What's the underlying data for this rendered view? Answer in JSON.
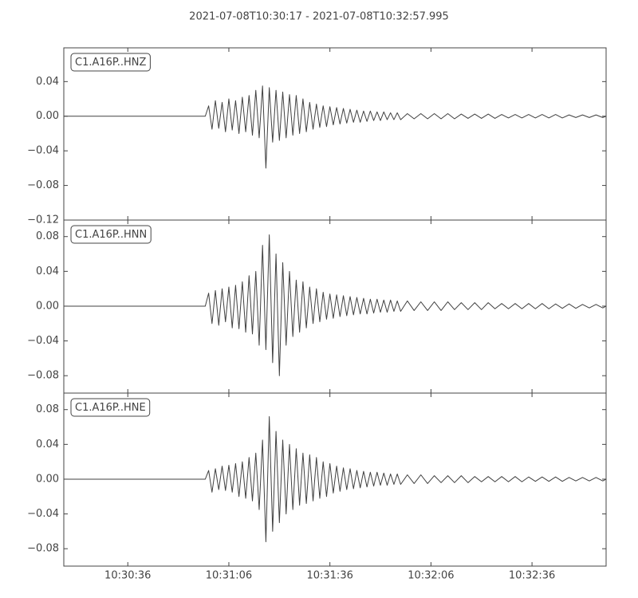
{
  "title": "2021-07-08T10:30:17  -  2021-07-08T10:32:57.995",
  "chart_data": [
    {
      "type": "line",
      "x": [
        0,
        42,
        43,
        44,
        45,
        46,
        47,
        48,
        49,
        50,
        51,
        52,
        53,
        54,
        55,
        56,
        57,
        58,
        59,
        60,
        61,
        62,
        63,
        64,
        65,
        66,
        67,
        68,
        69,
        70,
        71,
        72,
        73,
        74,
        75,
        76,
        77,
        78,
        79,
        80,
        81,
        82,
        83,
        84,
        85,
        86,
        87,
        88,
        89,
        90,
        91,
        92,
        93,
        94,
        95,
        96,
        97,
        98,
        99,
        100,
        102,
        104,
        106,
        108,
        110,
        112,
        114,
        116,
        118,
        120,
        122,
        124,
        126,
        128,
        130,
        132,
        134,
        136,
        138,
        140,
        142,
        144,
        146,
        148,
        150,
        152,
        154,
        156,
        158,
        160,
        160.995
      ],
      "series": [
        {
          "name": "C1.A16P..HNZ",
          "color": "#404040",
          "values": [
            0,
            0,
            0.012,
            -0.015,
            0.018,
            -0.014,
            0.016,
            -0.018,
            0.02,
            -0.016,
            0.018,
            -0.02,
            0.022,
            -0.018,
            0.024,
            -0.022,
            0.03,
            -0.025,
            0.035,
            -0.06,
            0.033,
            -0.03,
            0.03,
            -0.028,
            0.028,
            -0.025,
            0.025,
            -0.022,
            0.024,
            -0.02,
            0.02,
            -0.018,
            0.016,
            -0.015,
            0.014,
            -0.013,
            0.012,
            -0.012,
            0.011,
            -0.01,
            0.01,
            -0.009,
            0.009,
            -0.008,
            0.008,
            -0.007,
            0.007,
            -0.007,
            0.006,
            -0.006,
            0.006,
            -0.005,
            0.005,
            -0.005,
            0.005,
            -0.004,
            0.004,
            -0.004,
            0.004,
            -0.004,
            0.003,
            -0.003,
            0.003,
            -0.003,
            0.003,
            -0.003,
            0.003,
            -0.003,
            0.0025,
            -0.0025,
            0.0025,
            -0.0025,
            0.0025,
            -0.0025,
            0.002,
            -0.002,
            0.002,
            -0.002,
            0.002,
            -0.002,
            0.002,
            -0.002,
            0.002,
            -0.002,
            0.0015,
            -0.0015,
            0.0015,
            -0.0015,
            0.0015,
            -0.0015,
            0
          ]
        }
      ],
      "xlim": [
        0,
        160.995
      ],
      "ylim": [
        -0.12,
        0.079
      ],
      "yticks": [
        {
          "value": -0.12,
          "label": "−0.12"
        },
        {
          "value": -0.08,
          "label": "−0.08"
        },
        {
          "value": -0.04,
          "label": "−0.04"
        },
        {
          "value": 0,
          "label": "0.00"
        },
        0.04
      ]
    },
    {
      "type": "line",
      "x": [
        0,
        42,
        43,
        44,
        45,
        46,
        47,
        48,
        49,
        50,
        51,
        52,
        53,
        54,
        55,
        56,
        57,
        58,
        59,
        60,
        61,
        62,
        63,
        64,
        65,
        66,
        67,
        68,
        69,
        70,
        71,
        72,
        73,
        74,
        75,
        76,
        77,
        78,
        79,
        80,
        81,
        82,
        83,
        84,
        85,
        86,
        87,
        88,
        89,
        90,
        91,
        92,
        93,
        94,
        95,
        96,
        97,
        98,
        99,
        100,
        102,
        104,
        106,
        108,
        110,
        112,
        114,
        116,
        118,
        120,
        122,
        124,
        126,
        128,
        130,
        132,
        134,
        136,
        138,
        140,
        142,
        144,
        146,
        148,
        150,
        152,
        154,
        156,
        158,
        160,
        160.995
      ],
      "series": [
        {
          "name": "C1.A16P..HNN",
          "color": "#404040",
          "values": [
            0,
            0,
            0.015,
            -0.02,
            0.018,
            -0.022,
            0.02,
            -0.018,
            0.022,
            -0.025,
            0.024,
            -0.026,
            0.028,
            -0.03,
            0.035,
            -0.032,
            0.04,
            -0.045,
            0.07,
            -0.05,
            0.082,
            -0.065,
            0.06,
            -0.08,
            0.05,
            -0.045,
            0.04,
            -0.035,
            0.03,
            -0.03,
            0.028,
            -0.025,
            0.022,
            -0.02,
            0.02,
            -0.018,
            0.016,
            -0.015,
            0.014,
            -0.014,
            0.013,
            -0.012,
            0.012,
            -0.011,
            0.011,
            -0.01,
            0.01,
            -0.009,
            0.009,
            -0.009,
            0.008,
            -0.008,
            0.008,
            -0.007,
            0.007,
            -0.007,
            0.007,
            -0.006,
            0.006,
            -0.006,
            0.006,
            -0.005,
            0.005,
            -0.005,
            0.005,
            -0.005,
            0.005,
            -0.004,
            0.004,
            -0.004,
            0.004,
            -0.004,
            0.004,
            -0.003,
            0.003,
            -0.003,
            0.003,
            -0.003,
            0.003,
            -0.003,
            0.003,
            -0.003,
            0.0025,
            -0.0025,
            0.0025,
            -0.0025,
            0.002,
            -0.002,
            0.002,
            -0.002,
            0
          ]
        }
      ],
      "xlim": [
        0,
        160.995
      ],
      "ylim": [
        -0.1,
        0.099
      ],
      "yticks": [
        {
          "value": -0.08,
          "label": "−0.08"
        },
        {
          "value": -0.04,
          "label": "−0.04"
        },
        {
          "value": 0,
          "label": "0.00"
        },
        0.04,
        0.08
      ]
    },
    {
      "type": "line",
      "x": [
        0,
        42,
        43,
        44,
        45,
        46,
        47,
        48,
        49,
        50,
        51,
        52,
        53,
        54,
        55,
        56,
        57,
        58,
        59,
        60,
        61,
        62,
        63,
        64,
        65,
        66,
        67,
        68,
        69,
        70,
        71,
        72,
        73,
        74,
        75,
        76,
        77,
        78,
        79,
        80,
        81,
        82,
        83,
        84,
        85,
        86,
        87,
        88,
        89,
        90,
        91,
        92,
        93,
        94,
        95,
        96,
        97,
        98,
        99,
        100,
        102,
        104,
        106,
        108,
        110,
        112,
        114,
        116,
        118,
        120,
        122,
        124,
        126,
        128,
        130,
        132,
        134,
        136,
        138,
        140,
        142,
        144,
        146,
        148,
        150,
        152,
        154,
        156,
        158,
        160,
        160.995
      ],
      "series": [
        {
          "name": "C1.A16P..HNE",
          "color": "#404040",
          "values": [
            0,
            0,
            0.01,
            -0.015,
            0.012,
            -0.012,
            0.015,
            -0.013,
            0.016,
            -0.015,
            0.018,
            -0.02,
            0.02,
            -0.022,
            0.025,
            -0.025,
            0.03,
            -0.035,
            0.045,
            -0.072,
            0.072,
            -0.06,
            0.055,
            -0.05,
            0.045,
            -0.04,
            0.04,
            -0.035,
            0.035,
            -0.03,
            0.03,
            -0.028,
            0.028,
            -0.025,
            0.025,
            -0.022,
            0.02,
            -0.02,
            0.018,
            -0.016,
            0.015,
            -0.014,
            0.013,
            -0.012,
            0.012,
            -0.011,
            0.01,
            -0.01,
            0.009,
            -0.009,
            0.008,
            -0.008,
            0.008,
            -0.007,
            0.007,
            -0.007,
            0.006,
            -0.006,
            0.006,
            -0.006,
            0.005,
            -0.005,
            0.005,
            -0.005,
            0.004,
            -0.004,
            0.004,
            -0.004,
            0.004,
            -0.004,
            0.003,
            -0.003,
            0.003,
            -0.003,
            0.003,
            -0.003,
            0.003,
            -0.003,
            0.0025,
            -0.0025,
            0.0025,
            -0.0025,
            0.0025,
            -0.0025,
            0.002,
            -0.002,
            0.002,
            -0.002,
            0.002,
            -0.002,
            0
          ]
        }
      ],
      "xlim": [
        0,
        160.995
      ],
      "xticks": [
        {
          "value": 19,
          "label": "10:30:36"
        },
        {
          "value": 49,
          "label": "10:31:06"
        },
        {
          "value": 79,
          "label": "10:31:36"
        },
        {
          "value": 109,
          "label": "10:32:06"
        },
        {
          "value": 139,
          "label": "10:32:36"
        }
      ],
      "ylim": [
        -0.1,
        0.099
      ],
      "yticks": [
        {
          "value": -0.08,
          "label": "−0.08"
        },
        {
          "value": -0.04,
          "label": "−0.04"
        },
        {
          "value": 0,
          "label": "0.00"
        },
        0.04,
        0.08
      ]
    }
  ]
}
